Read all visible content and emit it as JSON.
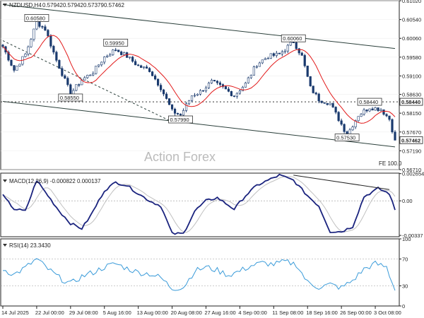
{
  "chart_data": {
    "type": "candlestick",
    "symbol": "NZDUSD,H4",
    "ohlc": [
      "0.57942",
      "0.57942",
      "0.57379",
      "0.57462"
    ],
    "watermark": "Action Forex",
    "fe_label": "FE 100.0",
    "price_axis": {
      "ylim": [
        0.5671,
        0.6102
      ],
      "ticks": [
        "0.61020",
        "0.60540",
        "0.60060",
        "0.59580",
        "0.59100",
        "0.58630",
        "0.58150",
        "0.57670",
        "0.57190",
        "0.56710"
      ],
      "current_price": "0.57462",
      "marked_level": "0.58440"
    },
    "annotations": [
      {
        "text": "0.60580",
        "x": 12,
        "price": 0.6058
      },
      {
        "text": "0.58550",
        "x": 24,
        "price": 0.5855
      },
      {
        "text": "0.59950",
        "x": 40,
        "price": 0.5995
      },
      {
        "text": "0.57990",
        "x": 63,
        "price": 0.5799
      },
      {
        "text": "0.60060",
        "x": 103,
        "price": 0.6006
      },
      {
        "text": "0.57530",
        "x": 122,
        "price": 0.5753
      },
      {
        "text": "0.58440",
        "x": 130,
        "price": 0.5844
      }
    ],
    "x_axis": {
      "count": 140,
      "ticks": [
        {
          "label": "14 Jul 2025",
          "index": 0
        },
        {
          "label": "22 Jul 00:00",
          "index": 12
        },
        {
          "label": "29 Jul 08:00",
          "index": 24
        },
        {
          "label": "5 Aug 16:00",
          "index": 36
        },
        {
          "label": "13 Aug 00:00",
          "index": 48
        },
        {
          "label": "20 Aug 08:00",
          "index": 60
        },
        {
          "label": "27 Aug 16:00",
          "index": 72
        },
        {
          "label": "4 Sep 00:00",
          "index": 84
        },
        {
          "label": "11 Sep 08:00",
          "index": 96
        },
        {
          "label": "18 Sep 16:00",
          "index": 108
        },
        {
          "label": "26 Sep 00:00",
          "index": 120
        },
        {
          "label": "3 Oct 08:00",
          "index": 132
        }
      ]
    },
    "price_keypoints": [
      [
        0,
        0.5985
      ],
      [
        4,
        0.5925
      ],
      [
        8,
        0.5965
      ],
      [
        12,
        0.6047
      ],
      [
        15,
        0.603
      ],
      [
        19,
        0.595
      ],
      [
        24,
        0.5865
      ],
      [
        28,
        0.59
      ],
      [
        32,
        0.592
      ],
      [
        36,
        0.5958
      ],
      [
        40,
        0.5978
      ],
      [
        44,
        0.596
      ],
      [
        48,
        0.5935
      ],
      [
        52,
        0.5925
      ],
      [
        56,
        0.588
      ],
      [
        60,
        0.582
      ],
      [
        63,
        0.581
      ],
      [
        67,
        0.586
      ],
      [
        70,
        0.587
      ],
      [
        74,
        0.5895
      ],
      [
        78,
        0.588
      ],
      [
        82,
        0.586
      ],
      [
        86,
        0.589
      ],
      [
        90,
        0.594
      ],
      [
        94,
        0.596
      ],
      [
        98,
        0.5965
      ],
      [
        103,
        0.5998
      ],
      [
        106,
        0.596
      ],
      [
        109,
        0.588
      ],
      [
        112,
        0.585
      ],
      [
        116,
        0.584
      ],
      [
        119,
        0.58
      ],
      [
        122,
        0.576
      ],
      [
        126,
        0.581
      ],
      [
        130,
        0.583
      ],
      [
        134,
        0.5825
      ],
      [
        137,
        0.58
      ],
      [
        139,
        0.5746
      ]
    ],
    "moving_average": {
      "color": "#e21a1a"
    },
    "channel": {
      "upper": [
        [
          0,
          0.6092
        ],
        [
          139,
          0.598
        ]
      ],
      "lower": [
        [
          0,
          0.5845
        ],
        [
          139,
          0.5729
        ]
      ],
      "dashed": [
        [
          0,
          0.6
        ],
        [
          60,
          0.5793
        ]
      ],
      "horizontal_level": 0.5844
    },
    "macd": {
      "label": "MACD(12,26,9) -0.000822 0.000137",
      "ylim": [
        -0.0035,
        0.0027
      ],
      "ticks": [
        "0.002654",
        "0.00",
        "-0.00337"
      ],
      "keypoints": [
        [
          0,
          0.0005
        ],
        [
          4,
          -0.0008
        ],
        [
          8,
          -0.001
        ],
        [
          12,
          0.002
        ],
        [
          16,
          0.0005
        ],
        [
          20,
          -0.001
        ],
        [
          24,
          -0.0022
        ],
        [
          28,
          -0.0027
        ],
        [
          31,
          -0.0015
        ],
        [
          36,
          0.001
        ],
        [
          40,
          0.0018
        ],
        [
          44,
          0.0015
        ],
        [
          48,
          0.0007
        ],
        [
          52,
          0.0
        ],
        [
          56,
          -0.0005
        ],
        [
          60,
          -0.0032
        ],
        [
          64,
          -0.0032
        ],
        [
          68,
          -0.001
        ],
        [
          72,
          0.0
        ],
        [
          76,
          0.0003
        ],
        [
          82,
          -0.0008
        ],
        [
          86,
          0.0005
        ],
        [
          90,
          0.0015
        ],
        [
          94,
          0.002
        ],
        [
          98,
          0.0025
        ],
        [
          103,
          0.002
        ],
        [
          108,
          0.0005
        ],
        [
          112,
          -0.0005
        ],
        [
          116,
          -0.003
        ],
        [
          120,
          -0.003
        ],
        [
          124,
          -0.0025
        ],
        [
          128,
          0.0004
        ],
        [
          133,
          0.0012
        ],
        [
          137,
          0.0007
        ],
        [
          139,
          -0.0009
        ]
      ],
      "trendline": [
        [
          103,
          0.0025
        ],
        [
          137,
          0.0011
        ]
      ]
    },
    "rsi": {
      "label": "RSI(14) 23.3430",
      "ylim": [
        0,
        100
      ],
      "ticks": [
        "100",
        "70",
        "30",
        "0"
      ],
      "levels": [
        70,
        30
      ],
      "keypoints": [
        [
          0,
          55
        ],
        [
          4,
          47
        ],
        [
          8,
          57
        ],
        [
          12,
          70
        ],
        [
          16,
          55
        ],
        [
          20,
          42
        ],
        [
          24,
          33
        ],
        [
          28,
          44
        ],
        [
          32,
          50
        ],
        [
          36,
          58
        ],
        [
          40,
          63
        ],
        [
          44,
          56
        ],
        [
          48,
          50
        ],
        [
          52,
          48
        ],
        [
          56,
          42
        ],
        [
          60,
          26
        ],
        [
          64,
          28
        ],
        [
          68,
          52
        ],
        [
          72,
          58
        ],
        [
          76,
          53
        ],
        [
          80,
          46
        ],
        [
          84,
          52
        ],
        [
          88,
          60
        ],
        [
          92,
          64
        ],
        [
          96,
          62
        ],
        [
          100,
          66
        ],
        [
          104,
          62
        ],
        [
          108,
          35
        ],
        [
          112,
          28
        ],
        [
          116,
          32
        ],
        [
          120,
          27
        ],
        [
          124,
          38
        ],
        [
          128,
          55
        ],
        [
          132,
          63
        ],
        [
          136,
          58
        ],
        [
          139,
          23
        ]
      ],
      "color": "#3a9bd9"
    },
    "colors": {
      "price": "#1a3a6e",
      "macd": "#1a237e",
      "signal": "#c0c0c0",
      "channel": "#2a3f3a"
    }
  }
}
